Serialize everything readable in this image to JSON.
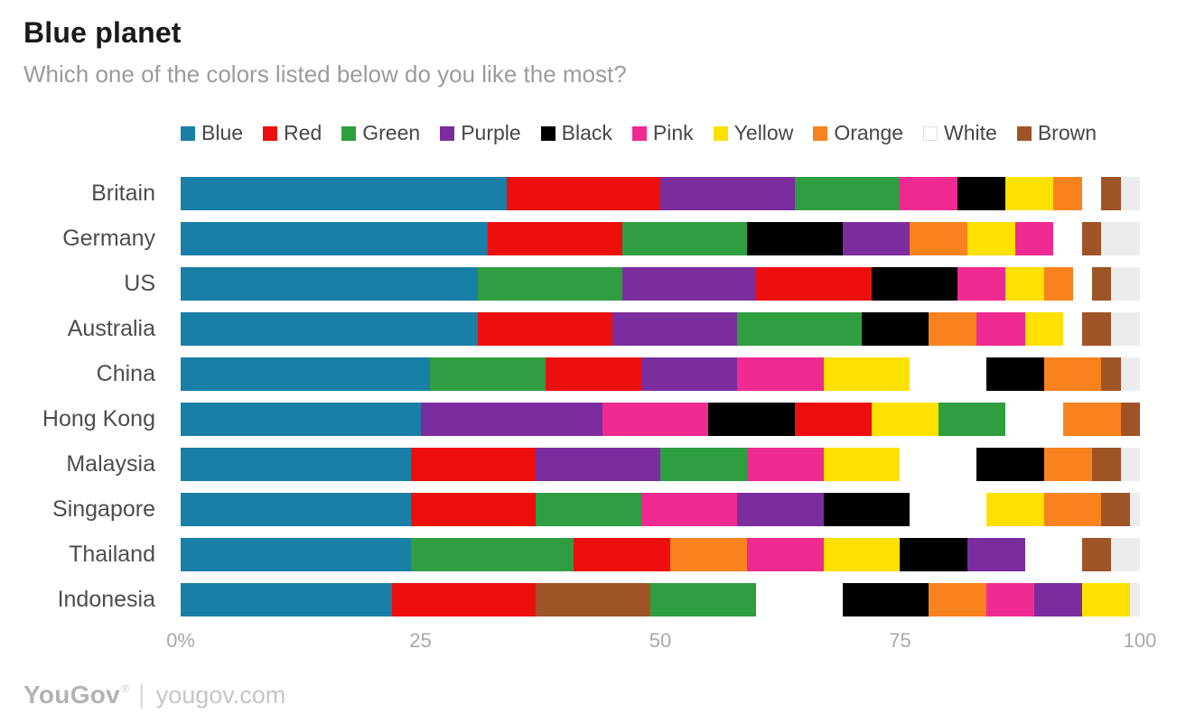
{
  "header": {
    "title": "Blue planet",
    "subtitle": "Which one of the colors listed below do you like the most?"
  },
  "colors": {
    "Blue": "#1a7fa6",
    "Red": "#ed0e0e",
    "Green": "#2f9e41",
    "Purple": "#7b2d9e",
    "Black": "#000000",
    "Pink": "#ef2a90",
    "Yellow": "#ffe100",
    "Orange": "#f8821e",
    "White": "#ffffff",
    "Brown": "#9e5426"
  },
  "legend": [
    "Blue",
    "Red",
    "Green",
    "Purple",
    "Black",
    "Pink",
    "Yellow",
    "Orange",
    "White",
    "Brown"
  ],
  "axis": {
    "ticks": [
      {
        "label": "0%",
        "position": 0
      },
      {
        "label": "25",
        "position": 25
      },
      {
        "label": "50",
        "position": 50
      },
      {
        "label": "75",
        "position": 75
      },
      {
        "label": "100",
        "position": 100
      }
    ]
  },
  "chart_data": {
    "type": "bar",
    "orientation": "horizontal-stacked",
    "title": "Blue planet",
    "question": "Which one of the colors listed below do you like the most?",
    "unit": "%",
    "xlim": [
      0,
      100
    ],
    "grid_positions": [
      25,
      50,
      75
    ],
    "categories": [
      "Britain",
      "Germany",
      "US",
      "Australia",
      "China",
      "Hong Kong",
      "Malaysia",
      "Singapore",
      "Thailand",
      "Indonesia"
    ],
    "rows": [
      {
        "country": "Britain",
        "segments": [
          {
            "color": "Blue",
            "value": 34
          },
          {
            "color": "Red",
            "value": 16
          },
          {
            "color": "Purple",
            "value": 14
          },
          {
            "color": "Green",
            "value": 11
          },
          {
            "color": "Pink",
            "value": 6
          },
          {
            "color": "Black",
            "value": 5
          },
          {
            "color": "Yellow",
            "value": 5
          },
          {
            "color": "Orange",
            "value": 3
          },
          {
            "color": "White",
            "value": 2
          },
          {
            "color": "Brown",
            "value": 2
          }
        ]
      },
      {
        "country": "Germany",
        "segments": [
          {
            "color": "Blue",
            "value": 32
          },
          {
            "color": "Red",
            "value": 14
          },
          {
            "color": "Green",
            "value": 13
          },
          {
            "color": "Black",
            "value": 10
          },
          {
            "color": "Purple",
            "value": 7
          },
          {
            "color": "Orange",
            "value": 6
          },
          {
            "color": "Yellow",
            "value": 5
          },
          {
            "color": "Pink",
            "value": 4
          },
          {
            "color": "White",
            "value": 3
          },
          {
            "color": "Brown",
            "value": 2
          }
        ]
      },
      {
        "country": "US",
        "segments": [
          {
            "color": "Blue",
            "value": 31
          },
          {
            "color": "Green",
            "value": 15
          },
          {
            "color": "Purple",
            "value": 14
          },
          {
            "color": "Red",
            "value": 12
          },
          {
            "color": "Black",
            "value": 9
          },
          {
            "color": "Pink",
            "value": 5
          },
          {
            "color": "Yellow",
            "value": 4
          },
          {
            "color": "Orange",
            "value": 3
          },
          {
            "color": "White",
            "value": 2
          },
          {
            "color": "Brown",
            "value": 2
          }
        ]
      },
      {
        "country": "Australia",
        "segments": [
          {
            "color": "Blue",
            "value": 31
          },
          {
            "color": "Red",
            "value": 14
          },
          {
            "color": "Purple",
            "value": 13
          },
          {
            "color": "Green",
            "value": 13
          },
          {
            "color": "Black",
            "value": 7
          },
          {
            "color": "Orange",
            "value": 5
          },
          {
            "color": "Pink",
            "value": 5
          },
          {
            "color": "Yellow",
            "value": 4
          },
          {
            "color": "White",
            "value": 2
          },
          {
            "color": "Brown",
            "value": 3
          }
        ]
      },
      {
        "country": "China",
        "segments": [
          {
            "color": "Blue",
            "value": 26
          },
          {
            "color": "Green",
            "value": 12
          },
          {
            "color": "Red",
            "value": 10
          },
          {
            "color": "Purple",
            "value": 10
          },
          {
            "color": "Pink",
            "value": 9
          },
          {
            "color": "Yellow",
            "value": 9
          },
          {
            "color": "White",
            "value": 8
          },
          {
            "color": "Black",
            "value": 6
          },
          {
            "color": "Orange",
            "value": 6
          },
          {
            "color": "Brown",
            "value": 2
          }
        ]
      },
      {
        "country": "Hong Kong",
        "segments": [
          {
            "color": "Blue",
            "value": 25
          },
          {
            "color": "Purple",
            "value": 19
          },
          {
            "color": "Pink",
            "value": 11
          },
          {
            "color": "Black",
            "value": 9
          },
          {
            "color": "Red",
            "value": 8
          },
          {
            "color": "Yellow",
            "value": 7
          },
          {
            "color": "Green",
            "value": 7
          },
          {
            "color": "White",
            "value": 6
          },
          {
            "color": "Orange",
            "value": 6
          },
          {
            "color": "Brown",
            "value": 2
          }
        ]
      },
      {
        "country": "Malaysia",
        "segments": [
          {
            "color": "Blue",
            "value": 24
          },
          {
            "color": "Red",
            "value": 13
          },
          {
            "color": "Purple",
            "value": 13
          },
          {
            "color": "Green",
            "value": 9
          },
          {
            "color": "Pink",
            "value": 8
          },
          {
            "color": "Yellow",
            "value": 8
          },
          {
            "color": "White",
            "value": 8
          },
          {
            "color": "Black",
            "value": 7
          },
          {
            "color": "Orange",
            "value": 5
          },
          {
            "color": "Brown",
            "value": 3
          }
        ]
      },
      {
        "country": "Singapore",
        "segments": [
          {
            "color": "Blue",
            "value": 24
          },
          {
            "color": "Red",
            "value": 13
          },
          {
            "color": "Green",
            "value": 11
          },
          {
            "color": "Pink",
            "value": 10
          },
          {
            "color": "Purple",
            "value": 9
          },
          {
            "color": "Black",
            "value": 9
          },
          {
            "color": "White",
            "value": 8
          },
          {
            "color": "Yellow",
            "value": 6
          },
          {
            "color": "Orange",
            "value": 6
          },
          {
            "color": "Brown",
            "value": 3
          }
        ]
      },
      {
        "country": "Thailand",
        "segments": [
          {
            "color": "Blue",
            "value": 24
          },
          {
            "color": "Green",
            "value": 17
          },
          {
            "color": "Red",
            "value": 10
          },
          {
            "color": "Orange",
            "value": 8
          },
          {
            "color": "Pink",
            "value": 8
          },
          {
            "color": "Yellow",
            "value": 8
          },
          {
            "color": "Black",
            "value": 7
          },
          {
            "color": "Purple",
            "value": 6
          },
          {
            "color": "White",
            "value": 6
          },
          {
            "color": "Brown",
            "value": 3
          }
        ]
      },
      {
        "country": "Indonesia",
        "segments": [
          {
            "color": "Blue",
            "value": 22
          },
          {
            "color": "Red",
            "value": 15
          },
          {
            "color": "Brown",
            "value": 12
          },
          {
            "color": "Green",
            "value": 11
          },
          {
            "color": "White",
            "value": 9
          },
          {
            "color": "Black",
            "value": 9
          },
          {
            "color": "Orange",
            "value": 6
          },
          {
            "color": "Pink",
            "value": 5
          },
          {
            "color": "Purple",
            "value": 5
          },
          {
            "color": "Yellow",
            "value": 5
          }
        ]
      }
    ]
  },
  "footer": {
    "logo": "YouGov",
    "trademark": "®",
    "divider": "|",
    "site": "yougov.com"
  }
}
